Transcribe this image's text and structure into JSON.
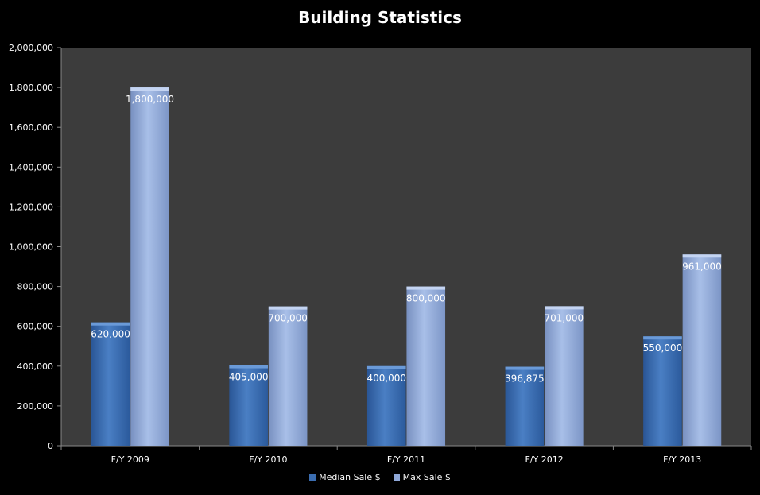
{
  "chart_data": {
    "type": "bar",
    "title": "Building Statistics",
    "xlabel": "",
    "ylabel": "",
    "categories": [
      "F/Y 2009",
      "F/Y 2010",
      "F/Y 2011",
      "F/Y 2012",
      "F/Y 2013"
    ],
    "series": [
      {
        "name": "Median Sale $",
        "values": [
          620000,
          405000,
          400000,
          396875,
          550000
        ],
        "labels": [
          "620,000",
          "405,000",
          "400,000",
          "396,875",
          "550,000"
        ],
        "color": "#3b6db0"
      },
      {
        "name": "Max Sale $",
        "values": [
          1800000,
          700000,
          800000,
          701000,
          961000
        ],
        "labels": [
          "1,800,000",
          "700,000",
          "800,000",
          "701,000",
          "961,000"
        ],
        "color": "#8fa8d8"
      }
    ],
    "ylim": [
      0,
      2000000
    ],
    "yticks": [
      0,
      200000,
      400000,
      600000,
      800000,
      1000000,
      1200000,
      1400000,
      1600000,
      1800000,
      2000000
    ],
    "ytick_labels": [
      "0",
      "200,000",
      "400,000",
      "600,000",
      "800,000",
      "1,000,000",
      "1,200,000",
      "1,400,000",
      "1,600,000",
      "1,800,000",
      "2,000,000"
    ],
    "grid": false,
    "legend_position": "bottom",
    "colors": {
      "page_background": "#000000",
      "plot_background": "#3c3c3c",
      "text": "#ffffff",
      "axis": "#888888"
    }
  }
}
